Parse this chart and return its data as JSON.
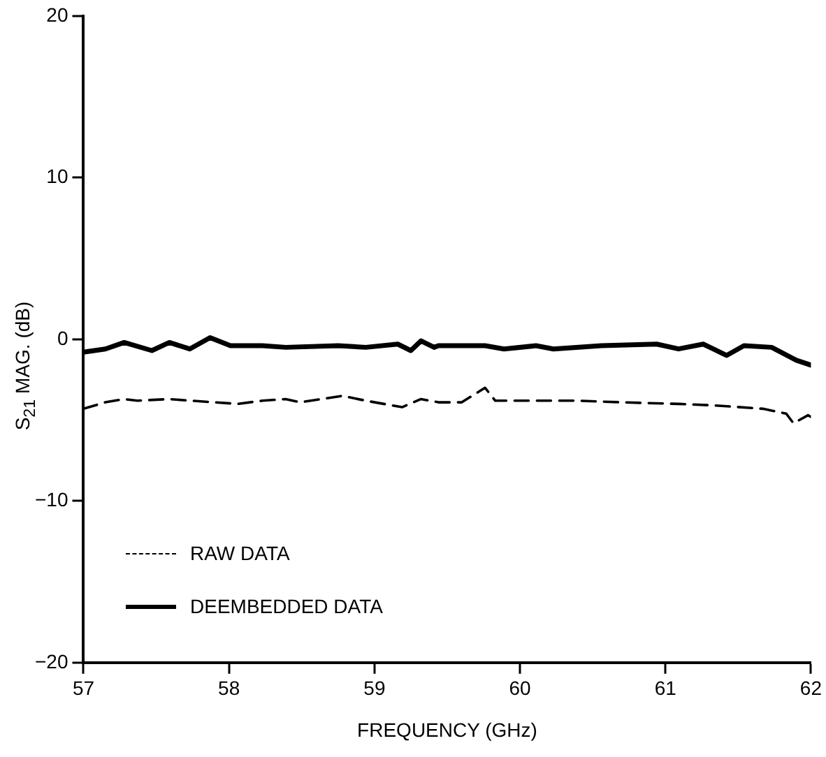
{
  "chart_data": {
    "type": "line",
    "xlabel": "FREQUENCY (GHz)",
    "ylabel": "S$_{21}$ MAG. (dB)",
    "xlim": [
      57,
      62
    ],
    "xticks": [
      57,
      58,
      59,
      60,
      61,
      62
    ],
    "ylim": [
      -20,
      20
    ],
    "yticks": [
      -20,
      -10,
      0,
      10,
      20
    ],
    "legend": "bottom left",
    "grid": false,
    "marker": "none",
    "series": [
      {
        "name": "RAW DATA",
        "color": "#000000",
        "line_style": "dashed",
        "x": [
          57.0,
          57.15,
          57.28,
          57.37,
          57.59,
          57.74,
          57.9,
          58.06,
          58.23,
          58.39,
          58.49,
          58.78,
          58.94,
          59.19,
          59.32,
          59.44,
          59.6,
          59.76,
          59.83,
          60.07,
          60.39,
          60.7,
          61.09,
          61.35,
          61.67,
          61.83,
          61.88,
          61.98,
          62.0
        ],
        "values": [
          -4.3,
          -3.9,
          -3.7,
          -3.8,
          -3.7,
          -3.8,
          -3.9,
          -4.0,
          -3.8,
          -3.7,
          -3.9,
          -3.5,
          -3.8,
          -4.2,
          -3.7,
          -3.9,
          -3.9,
          -3.0,
          -3.8,
          -3.8,
          -3.8,
          -3.9,
          -4.0,
          -4.1,
          -4.3,
          -4.6,
          -5.2,
          -4.7,
          -4.8
        ]
      },
      {
        "name": "DEEMBEDDED DATA",
        "color": "#000000",
        "line_style": "solid",
        "x": [
          57.0,
          57.15,
          57.28,
          57.47,
          57.59,
          57.73,
          57.87,
          58.01,
          58.23,
          58.39,
          58.75,
          58.94,
          59.16,
          59.25,
          59.32,
          59.41,
          59.44,
          59.76,
          59.89,
          60.11,
          60.23,
          60.56,
          60.94,
          61.09,
          61.26,
          61.42,
          61.54,
          61.73,
          61.9,
          62.0
        ],
        "values": [
          -0.8,
          -0.6,
          -0.2,
          -0.7,
          -0.2,
          -0.6,
          0.1,
          -0.4,
          -0.4,
          -0.5,
          -0.4,
          -0.5,
          -0.3,
          -0.7,
          -0.1,
          -0.5,
          -0.4,
          -0.4,
          -0.6,
          -0.4,
          -0.6,
          -0.4,
          -0.3,
          -0.6,
          -0.3,
          -1.0,
          -0.4,
          -0.5,
          -1.3,
          -1.6
        ]
      }
    ]
  }
}
